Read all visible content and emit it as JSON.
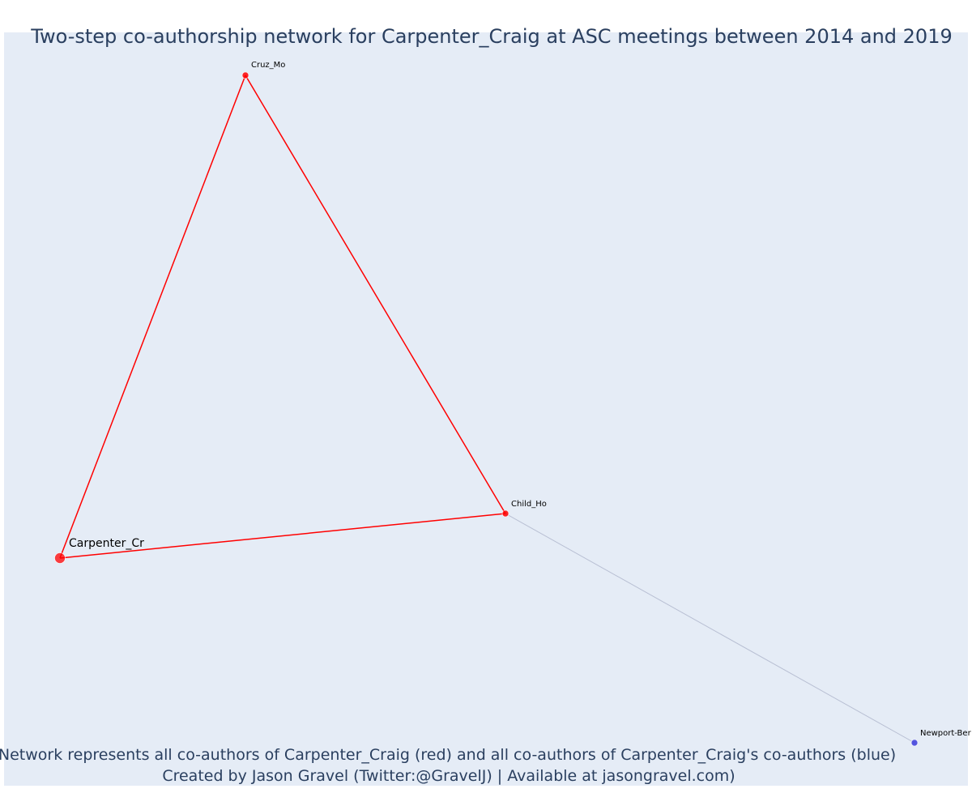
{
  "title": "Two-step co-authorship network for Carpenter_Craig at ASC meetings between 2014 and 2019",
  "caption": {
    "line1": "Network represents all co-authors of Carpenter_Craig (red) and all co-authors of Carpenter_Craig's co-authors (blue)",
    "line2": "Created by Jason Gravel (Twitter:@GravelJ) | Available at jasongravel.com)"
  },
  "colors": {
    "background": "#e5ecf6",
    "first_degree": "#ff0000",
    "second_degree": "#3b3bdb",
    "second_edge": "#b8bfd3",
    "text": "#2a3f5f"
  },
  "network": {
    "nodes": [
      {
        "id": "carpenter",
        "label": "Carpenter_Cr",
        "group": "focal"
      },
      {
        "id": "cruz",
        "label": "Cruz_Mo",
        "group": "first_degree"
      },
      {
        "id": "child",
        "label": "Child_Ho",
        "group": "first_degree"
      },
      {
        "id": "newport",
        "label": "Newport-Ber",
        "group": "second_degree"
      }
    ],
    "edges": [
      {
        "source": "carpenter",
        "target": "cruz",
        "type": "first_degree"
      },
      {
        "source": "cruz",
        "target": "child",
        "type": "first_degree"
      },
      {
        "source": "carpenter",
        "target": "child",
        "type": "first_degree"
      },
      {
        "source": "child",
        "target": "newport",
        "type": "second_degree"
      }
    ]
  }
}
